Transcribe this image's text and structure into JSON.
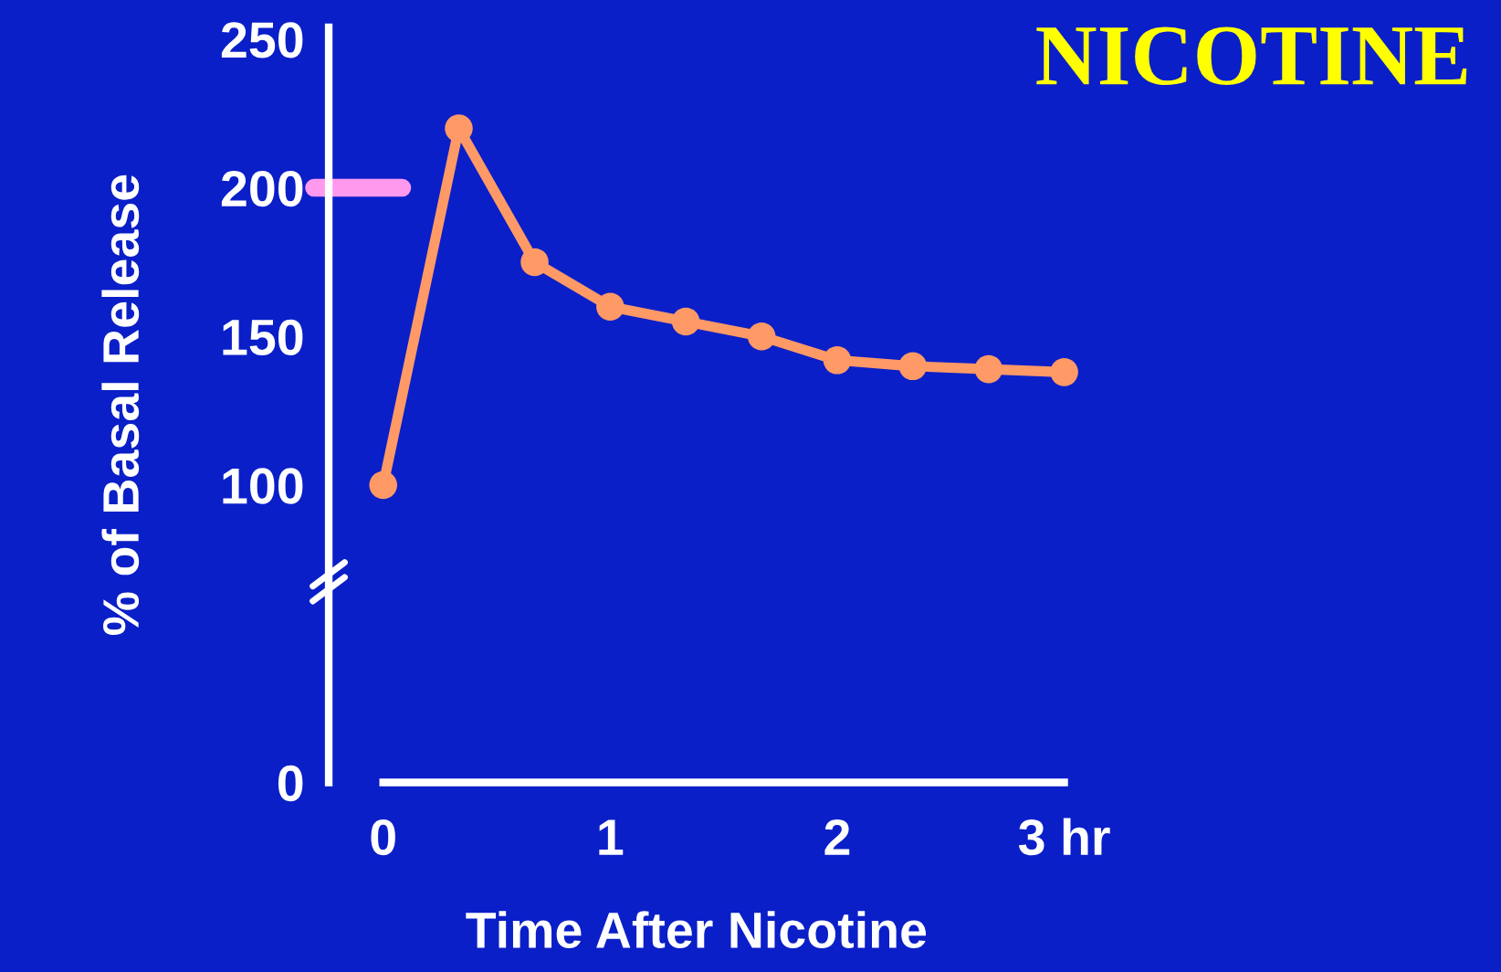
{
  "chart_data": {
    "type": "line",
    "title": "NICOTINE",
    "xlabel": "Time After Nicotine",
    "ylabel": "% of Basal Release",
    "x": [
      0,
      0.333,
      0.667,
      1,
      1.333,
      1.667,
      2,
      2.333,
      2.667,
      3
    ],
    "series": [
      {
        "color": "#ff9966",
        "values": [
          100,
          220,
          175,
          160,
          155,
          150,
          142,
          140,
          139,
          138
        ]
      }
    ],
    "xlim": [
      -0.24,
      3
    ],
    "xticks": [
      0,
      1,
      2,
      {
        "value": 3,
        "label": "3 hr"
      }
    ],
    "ylim": [
      0,
      254
    ],
    "yticks": [
      0,
      100,
      150,
      200,
      250
    ],
    "ref_lines": [
      {
        "axis": "y",
        "value": 200,
        "color": "#ff99ee"
      }
    ],
    "marker": "circle",
    "line_style": "solid",
    "grid": false,
    "legend": false
  }
}
